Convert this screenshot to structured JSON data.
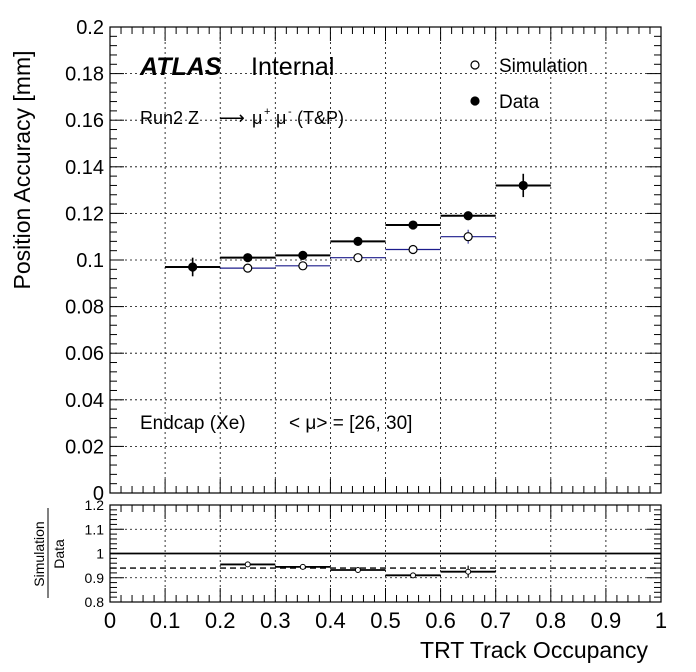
{
  "chart_data": [
    {
      "type": "scatter",
      "ylabel": "Position Accuracy [mm]",
      "xlabel": "TRT Track Occupancy",
      "xlim": [
        0,
        1
      ],
      "ylim": [
        0,
        0.2
      ],
      "xticks": [
        "0",
        "0.1",
        "0.2",
        "0.3",
        "0.4",
        "0.5",
        "0.6",
        "0.7",
        "0.8",
        "0.9",
        "1"
      ],
      "yticks": [
        "0",
        "0.02",
        "0.04",
        "0.06",
        "0.08",
        "0.1",
        "0.12",
        "0.14",
        "0.16",
        "0.18",
        "0.2"
      ],
      "grid": true,
      "legend": {
        "placement": "top-right",
        "entries": [
          {
            "name": "Simulation",
            "marker": "open-circle"
          },
          {
            "name": "Data",
            "marker": "filled-circle"
          }
        ]
      },
      "annotations": {
        "atlas": "ATLAS",
        "internal": "Internal",
        "run_prefix": "Run2 Z",
        "arrow": "⟶",
        "mu": "μ",
        "sup_plus": "+",
        "sup_minus": "-",
        "tp": "(T&P)",
        "region": "Endcap (Xe)",
        "pileup": "< μ> = [26, 30]"
      },
      "series": [
        {
          "name": "Simulation",
          "line_color": "#1c1c8c",
          "points": [
            {
              "x": 0.25,
              "x_err": 0.05,
              "y": 0.0965,
              "y_err": 0.0006
            },
            {
              "x": 0.35,
              "x_err": 0.05,
              "y": 0.0975,
              "y_err": 0.0006
            },
            {
              "x": 0.45,
              "x_err": 0.05,
              "y": 0.101,
              "y_err": 0.0006
            },
            {
              "x": 0.55,
              "x_err": 0.05,
              "y": 0.1045,
              "y_err": 0.0008
            },
            {
              "x": 0.65,
              "x_err": 0.05,
              "y": 0.11,
              "y_err": 0.003
            }
          ]
        },
        {
          "name": "Data",
          "line_color": "#000000",
          "points": [
            {
              "x": 0.15,
              "x_err": 0.05,
              "y": 0.097,
              "y_err": 0.004
            },
            {
              "x": 0.25,
              "x_err": 0.05,
              "y": 0.101,
              "y_err": 0.001
            },
            {
              "x": 0.35,
              "x_err": 0.05,
              "y": 0.102,
              "y_err": 0.001
            },
            {
              "x": 0.45,
              "x_err": 0.05,
              "y": 0.108,
              "y_err": 0.0008
            },
            {
              "x": 0.55,
              "x_err": 0.05,
              "y": 0.115,
              "y_err": 0.0008
            },
            {
              "x": 0.65,
              "x_err": 0.05,
              "y": 0.119,
              "y_err": 0.0008
            },
            {
              "x": 0.75,
              "x_err": 0.05,
              "y": 0.132,
              "y_err": 0.005
            }
          ]
        }
      ]
    },
    {
      "type": "scatter",
      "ylabel_top": "Simulation",
      "ylabel_bottom": "Data",
      "xlabel": "TRT Track Occupancy",
      "xlim": [
        0,
        1
      ],
      "ylim": [
        0.8,
        1.2
      ],
      "xticks": [
        "0",
        "0.1",
        "0.2",
        "0.3",
        "0.4",
        "0.5",
        "0.6",
        "0.7",
        "0.8",
        "0.9",
        "1"
      ],
      "yticks": [
        "0.8",
        "0.9",
        "1",
        "1.1",
        "1.2"
      ],
      "reference_line": 1.0,
      "mean_line": 0.94,
      "grid": true,
      "series": [
        {
          "name": "Simulation/Data",
          "points": [
            {
              "x": 0.25,
              "x_err": 0.05,
              "y": 0.955,
              "y_err": 0.008
            },
            {
              "x": 0.35,
              "x_err": 0.05,
              "y": 0.945,
              "y_err": 0.008
            },
            {
              "x": 0.45,
              "x_err": 0.05,
              "y": 0.932,
              "y_err": 0.006
            },
            {
              "x": 0.55,
              "x_err": 0.05,
              "y": 0.91,
              "y_err": 0.006
            },
            {
              "x": 0.65,
              "x_err": 0.05,
              "y": 0.925,
              "y_err": 0.025
            }
          ]
        }
      ]
    }
  ]
}
